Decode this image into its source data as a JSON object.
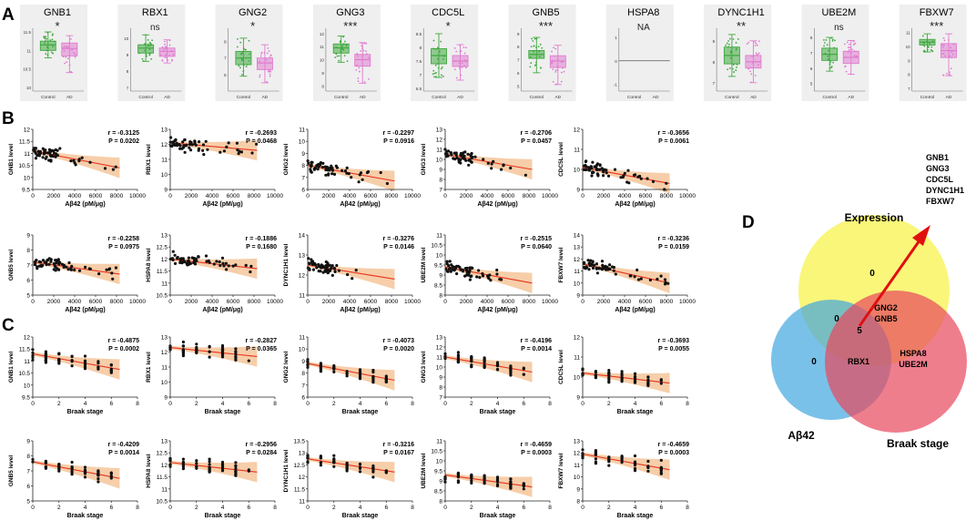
{
  "panels": {
    "A": "A",
    "B": "B",
    "C": "C",
    "D": "D"
  },
  "chart_data": [
    {
      "type": "box",
      "panel": "A",
      "group_labels": [
        "Control",
        "AD"
      ],
      "group_colors": [
        "#3ea83e",
        "#e07bd0"
      ],
      "plots": [
        {
          "gene": "GNB1",
          "sig": "*",
          "yticks": [
            10,
            10.5,
            11,
            11.5
          ],
          "ylim": [
            9.9,
            11.6
          ],
          "boxes": [
            {
              "q1": 11.0,
              "med": 11.15,
              "q3": 11.25,
              "lo": 10.8,
              "hi": 11.5
            },
            {
              "q1": 10.85,
              "med": 11.05,
              "q3": 11.2,
              "lo": 10.4,
              "hi": 11.4
            }
          ]
        },
        {
          "gene": "RBX1",
          "sig": "ns",
          "yticks": [
            7,
            8,
            9,
            10
          ],
          "ylim": [
            6.8,
            10.6
          ],
          "boxes": [
            {
              "q1": 9.1,
              "med": 9.4,
              "q3": 9.6,
              "lo": 8.6,
              "hi": 10.2
            },
            {
              "q1": 8.9,
              "med": 9.2,
              "q3": 9.4,
              "lo": 8.5,
              "hi": 9.9
            }
          ]
        },
        {
          "gene": "GNG2",
          "sig": "*",
          "yticks": [
            6,
            7,
            8
          ],
          "ylim": [
            5.0,
            8.8
          ],
          "boxes": [
            {
              "q1": 6.6,
              "med": 7.0,
              "q3": 7.4,
              "lo": 5.9,
              "hi": 8.2
            },
            {
              "q1": 6.3,
              "med": 6.7,
              "q3": 7.0,
              "lo": 5.5,
              "hi": 7.8
            }
          ]
        },
        {
          "gene": "GNG3",
          "sig": "***",
          "yticks": [
            8,
            9,
            10,
            11,
            12
          ],
          "ylim": [
            7.6,
            12.4
          ],
          "boxes": [
            {
              "q1": 10.5,
              "med": 10.9,
              "q3": 11.2,
              "lo": 9.8,
              "hi": 11.8
            },
            {
              "q1": 9.5,
              "med": 10.0,
              "q3": 10.4,
              "lo": 8.2,
              "hi": 11.3
            }
          ]
        },
        {
          "gene": "CDC5L",
          "sig": "*",
          "yticks": [
            6.5,
            7,
            7.5,
            8,
            8.5
          ],
          "ylim": [
            6.4,
            8.7
          ],
          "boxes": [
            {
              "q1": 7.4,
              "med": 7.7,
              "q3": 7.95,
              "lo": 6.9,
              "hi": 8.5
            },
            {
              "q1": 7.3,
              "med": 7.5,
              "q3": 7.7,
              "lo": 6.8,
              "hi": 8.1
            }
          ]
        },
        {
          "gene": "GNB5",
          "sig": "***",
          "yticks": [
            5,
            6,
            7,
            8,
            9
          ],
          "ylim": [
            4.6,
            9.4
          ],
          "boxes": [
            {
              "q1": 7.1,
              "med": 7.4,
              "q3": 7.7,
              "lo": 6.0,
              "hi": 8.7
            },
            {
              "q1": 6.4,
              "med": 6.9,
              "q3": 7.3,
              "lo": 5.1,
              "hi": 8.1
            }
          ]
        },
        {
          "gene": "HSPA8",
          "sig": "NA",
          "yticks": [
            -1,
            0,
            1
          ],
          "ylim": [
            -1.3,
            1.4
          ],
          "boxes": []
        },
        {
          "gene": "DYNC1H1",
          "sig": "**",
          "yticks": [
            7,
            8,
            9
          ],
          "ylim": [
            6.6,
            9.6
          ],
          "boxes": [
            {
              "q1": 7.9,
              "med": 8.3,
              "q3": 8.7,
              "lo": 7.3,
              "hi": 9.3
            },
            {
              "q1": 7.7,
              "med": 8.0,
              "q3": 8.3,
              "lo": 7.0,
              "hi": 9.0
            }
          ]
        },
        {
          "gene": "UBE2M",
          "sig": "ns",
          "yticks": [
            5,
            6,
            7,
            8
          ],
          "ylim": [
            4.5,
            8.6
          ],
          "boxes": [
            {
              "q1": 6.5,
              "med": 6.9,
              "q3": 7.3,
              "lo": 5.8,
              "hi": 8.0
            },
            {
              "q1": 6.3,
              "med": 6.7,
              "q3": 7.1,
              "lo": 5.6,
              "hi": 7.8
            }
          ]
        },
        {
          "gene": "FBXW7",
          "sig": "***",
          "yticks": [
            7,
            8,
            9,
            10,
            11
          ],
          "ylim": [
            6.8,
            11.3
          ],
          "boxes": [
            {
              "q1": 10.1,
              "med": 10.3,
              "q3": 10.5,
              "lo": 9.6,
              "hi": 10.9
            },
            {
              "q1": 9.2,
              "med": 9.7,
              "q3": 10.2,
              "lo": 7.9,
              "hi": 10.9
            }
          ]
        }
      ]
    },
    {
      "type": "scatter",
      "panel": "B",
      "xlabel": "Aβ42 (pM/μg)",
      "xticks": [
        0,
        2000,
        4000,
        6000,
        8000,
        10000
      ],
      "xlim": [
        0,
        10000
      ],
      "plots": [
        {
          "gene": "GNB1",
          "ylabel": "GNB1 level",
          "r": "r = -0.3125",
          "p": "P = 0.0202",
          "yticks": [
            9.5,
            10.0,
            10.5,
            11.0,
            11.5,
            12.0
          ],
          "ylim": [
            9.5,
            12.0
          ],
          "fit": [
            11.1,
            10.4
          ]
        },
        {
          "gene": "RBX1",
          "ylabel": "RBX1 level",
          "r": "r = -0.2693",
          "p": "P = 0.0468",
          "yticks": [
            9,
            10,
            11,
            12,
            13
          ],
          "ylim": [
            9,
            13
          ],
          "fit": [
            12.1,
            11.6
          ]
        },
        {
          "gene": "GNG2",
          "ylabel": "GNG2 level",
          "r": "r = -0.2297",
          "p": "P = 0.0916",
          "yticks": [
            6,
            7,
            8,
            9,
            10,
            11
          ],
          "ylim": [
            6,
            11
          ],
          "fit": [
            8.0,
            6.7
          ]
        },
        {
          "gene": "GNG3",
          "ylabel": "GNG3 level",
          "r": "r = -0.2706",
          "p": "P = 0.0457",
          "yticks": [
            7,
            8,
            9,
            10,
            11,
            12,
            13
          ],
          "ylim": [
            7,
            13
          ],
          "fit": [
            10.5,
            9.0
          ]
        },
        {
          "gene": "CDC5L",
          "ylabel": "CDC5L level",
          "r": "r = -0.3656",
          "p": "P = 0.0061",
          "yticks": [
            9,
            10,
            11,
            12
          ],
          "ylim": [
            9,
            12
          ],
          "fit": [
            10.1,
            9.3
          ]
        },
        {
          "gene": "GNB5",
          "ylabel": "GNB5 level",
          "r": "r = -0.2258",
          "p": "P = 0.0975",
          "yticks": [
            5,
            6,
            7,
            8,
            9
          ],
          "ylim": [
            5,
            9
          ],
          "fit": [
            7.2,
            6.4
          ]
        },
        {
          "gene": "HSPA8",
          "ylabel": "HSPA8 level",
          "r": "r = -0.1886",
          "p": "P = 0.1680",
          "yticks": [
            10.5,
            11.0,
            11.5,
            12.0,
            12.5,
            13.0
          ],
          "ylim": [
            10.5,
            13.0
          ],
          "fit": [
            12.0,
            11.6
          ]
        },
        {
          "gene": "DYNC1H1",
          "ylabel": "DYNC1H1 level",
          "r": "r = -0.3276",
          "p": "P = 0.0146",
          "yticks": [
            11,
            12,
            13,
            14
          ],
          "ylim": [
            11,
            14
          ],
          "fit": [
            12.5,
            11.8
          ]
        },
        {
          "gene": "UBE2M",
          "ylabel": "UBE2M level",
          "r": "r = -0.2515",
          "p": "P = 0.0640",
          "yticks": [
            8.0,
            8.5,
            9.0,
            9.5,
            10.0,
            10.5,
            11.0
          ],
          "ylim": [
            8.0,
            11.0
          ],
          "fit": [
            9.4,
            8.6
          ]
        },
        {
          "gene": "FBXW7",
          "ylabel": "FBXW7 level",
          "r": "r = -0.3236",
          "p": "P = 0.0159",
          "yticks": [
            9,
            10,
            11,
            12,
            13,
            14
          ],
          "ylim": [
            9,
            14
          ],
          "fit": [
            11.6,
            10.0
          ]
        }
      ]
    },
    {
      "type": "scatter",
      "panel": "C",
      "xlabel": "Braak stage",
      "xticks": [
        0,
        2,
        4,
        6,
        8
      ],
      "xlim": [
        0,
        8
      ],
      "plots": [
        {
          "gene": "GNB1",
          "ylabel": "GNB1 level",
          "r": "r = -0.4875",
          "p": "P = 0.0002",
          "yticks": [
            9.5,
            10.0,
            10.5,
            11.0,
            11.5,
            12.0
          ],
          "ylim": [
            9.5,
            12.0
          ],
          "fit": [
            11.3,
            10.65
          ]
        },
        {
          "gene": "RBX1",
          "ylabel": "RBX1 level",
          "r": "r = -0.2827",
          "p": "P = 0.0365",
          "yticks": [
            9,
            10,
            11,
            12,
            13
          ],
          "ylim": [
            9,
            13
          ],
          "fit": [
            12.3,
            11.7
          ]
        },
        {
          "gene": "GNG2",
          "ylabel": "GNG2 level",
          "r": "r = -0.4073",
          "p": "P = 0.0020",
          "yticks": [
            6,
            7,
            8,
            9,
            10,
            11
          ],
          "ylim": [
            6,
            11
          ],
          "fit": [
            8.8,
            7.4
          ]
        },
        {
          "gene": "GNG3",
          "ylabel": "GNG3 level",
          "r": "r = -0.4196",
          "p": "P = 0.0014",
          "yticks": [
            7,
            8,
            9,
            10,
            11,
            12,
            13
          ],
          "ylim": [
            7,
            13
          ],
          "fit": [
            11.0,
            9.5
          ]
        },
        {
          "gene": "CDC5L",
          "ylabel": "CDC5L level",
          "r": "r = -0.3693",
          "p": "P = 0.0055",
          "yticks": [
            9,
            10,
            11,
            12
          ],
          "ylim": [
            9,
            12
          ],
          "fit": [
            10.2,
            9.7
          ]
        },
        {
          "gene": "GNB5",
          "ylabel": "GNB5 level",
          "r": "r = -0.4209",
          "p": "P = 0.0014",
          "yticks": [
            5,
            6,
            7,
            8,
            9
          ],
          "ylim": [
            5,
            9
          ],
          "fit": [
            7.6,
            6.5
          ]
        },
        {
          "gene": "HSPA8",
          "ylabel": "HSPA8 level",
          "r": "r = -0.2956",
          "p": "P = 0.0284",
          "yticks": [
            10.5,
            11.0,
            11.5,
            12.0,
            12.5,
            13.0
          ],
          "ylim": [
            10.5,
            13.0
          ],
          "fit": [
            12.1,
            11.7
          ]
        },
        {
          "gene": "DYNC1H1",
          "ylabel": "DYNC1H1 level",
          "r": "r = -0.3216",
          "p": "P = 0.0167",
          "yticks": [
            11.0,
            11.5,
            12.0,
            12.5,
            13.0,
            13.5
          ],
          "ylim": [
            11.0,
            13.5
          ],
          "fit": [
            12.75,
            12.2
          ]
        },
        {
          "gene": "UBE2M",
          "ylabel": "UBE2M level",
          "r": "r = -0.4659",
          "p": "P = 0.0003",
          "yticks": [
            8.0,
            8.5,
            9.0,
            9.5,
            10.0,
            10.5,
            11.0
          ],
          "ylim": [
            8.0,
            11.0
          ],
          "fit": [
            9.3,
            8.7
          ]
        },
        {
          "gene": "FBXW7",
          "ylabel": "FBXW7 level",
          "r": "r = -0.4659",
          "p": "P = 0.0003",
          "yticks": [
            8,
            9,
            10,
            11,
            12,
            13
          ],
          "ylim": [
            8,
            13
          ],
          "fit": [
            11.9,
            10.6
          ]
        }
      ]
    },
    {
      "type": "venn",
      "panel": "D",
      "sets": [
        {
          "name": "Expression",
          "color": "#f7f241"
        },
        {
          "name": "Aβ42",
          "color": "#41a6e0"
        },
        {
          "name": "Braak stage",
          "color": "#e8475c"
        }
      ],
      "regions": {
        "expression_only": "0",
        "abeta_only": "0",
        "expression_abeta": "0",
        "center_count": "5",
        "expression_braak": [
          "GNG2",
          "GNB5"
        ],
        "abeta_braak": "RBX1",
        "braak_only": [
          "HSPA8",
          "UBE2M"
        ]
      },
      "callout_genes": [
        "GNB1",
        "GNG3",
        "CDC5L",
        "DYNC1H1",
        "FBXW7"
      ],
      "arrow_color": "#e01010"
    }
  ]
}
